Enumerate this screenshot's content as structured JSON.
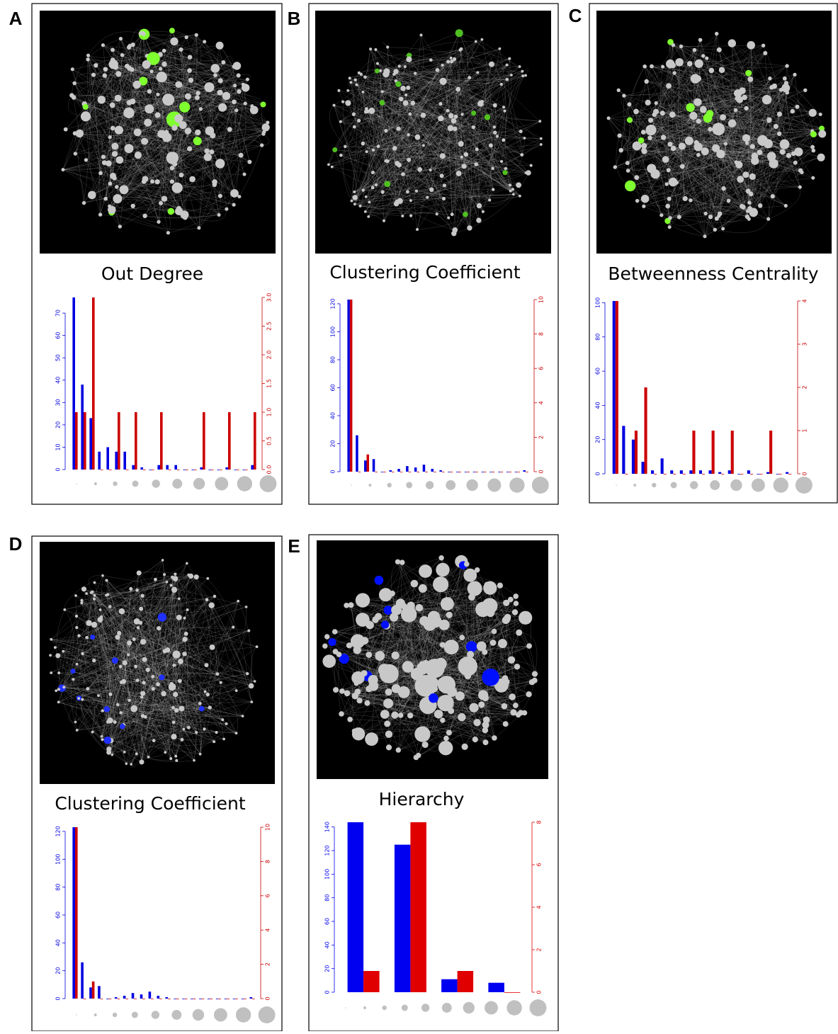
{
  "chart_data": [
    {
      "type": "bar",
      "label": "A",
      "title": "Out Degree",
      "series": [
        {
          "color": "#0000e0",
          "values": [
            77,
            38,
            23,
            8,
            10,
            8,
            8,
            2,
            1,
            0,
            2,
            2,
            2,
            0,
            0,
            1,
            0,
            0,
            1,
            0,
            0,
            2
          ]
        },
        {
          "color": "#cc0000",
          "axis": "y2",
          "values": [
            1,
            1,
            3,
            0,
            0,
            1,
            0,
            1,
            0,
            0,
            1,
            0,
            0,
            0,
            0,
            1,
            0,
            0,
            1,
            0,
            0,
            1
          ]
        }
      ],
      "ylim": [
        0,
        77
      ],
      "yticks": [
        0,
        10,
        20,
        30,
        40,
        50,
        60,
        70
      ],
      "y2lim": [
        0,
        3
      ],
      "y2ticks": [
        {
          "value": 0,
          "label": "0.0"
        },
        {
          "value": 0.5,
          "label": "0.5"
        },
        {
          "value": 1,
          "label": "1.0"
        },
        {
          "value": 1.5,
          "label": "1.5"
        },
        {
          "value": 2,
          "label": "2.0"
        },
        {
          "value": 2.5,
          "label": "2.5"
        },
        {
          "value": 3,
          "label": "3.0"
        }
      ]
    },
    {
      "type": "bar",
      "label": "B",
      "title": "Clustering Coefficient",
      "series": [
        {
          "color": "#0000e0",
          "values": [
            123,
            26,
            8,
            9,
            0,
            1,
            2,
            4,
            3,
            5,
            2,
            1,
            0,
            0,
            0,
            0,
            0,
            0,
            0,
            0,
            0,
            1
          ]
        },
        {
          "color": "#cc0000",
          "axis": "y2",
          "values": [
            10,
            0,
            1,
            0,
            0,
            0,
            0,
            0,
            0,
            0,
            0,
            0,
            0,
            0,
            0,
            0,
            0,
            0,
            0,
            0,
            0,
            0
          ]
        }
      ],
      "ylim": [
        0,
        123
      ],
      "yticks": [
        0,
        20,
        40,
        60,
        80,
        100,
        120
      ],
      "y2lim": [
        0,
        10
      ],
      "y2ticks": [
        0,
        2,
        4,
        6,
        8,
        10
      ]
    },
    {
      "type": "bar",
      "label": "C",
      "title": "Betweenness Centrality",
      "series": [
        {
          "color": "#0000e0",
          "values": [
            101,
            28,
            20,
            7,
            2,
            9,
            2,
            2,
            2,
            2,
            2,
            1,
            2,
            0,
            2,
            0,
            1,
            0,
            1
          ]
        },
        {
          "color": "#cc0000",
          "axis": "y2",
          "values": [
            4,
            0,
            1,
            2,
            0,
            0,
            0,
            0,
            1,
            0,
            1,
            0,
            1,
            0,
            0,
            0,
            1,
            0,
            0
          ]
        }
      ],
      "ylim": [
        0,
        101
      ],
      "yticks": [
        0,
        20,
        40,
        60,
        80,
        100
      ],
      "y2lim": [
        0,
        4
      ],
      "y2ticks": [
        0,
        1,
        2,
        3,
        4
      ]
    },
    {
      "type": "bar",
      "label": "D",
      "title": "Clustering Coefficient",
      "series": [
        {
          "color": "#0000e0",
          "values": [
            123,
            26,
            8,
            9,
            0,
            1,
            2,
            4,
            3,
            5,
            2,
            1,
            0,
            0,
            0,
            0,
            0,
            0,
            0,
            0,
            0,
            1
          ]
        },
        {
          "color": "#cc0000",
          "axis": "y2",
          "values": [
            10,
            0,
            1,
            0,
            0,
            0,
            0,
            0,
            0,
            0,
            0,
            0,
            0,
            0,
            0,
            0,
            0,
            0,
            0,
            0,
            0,
            0
          ]
        }
      ],
      "ylim": [
        0,
        123
      ],
      "yticks": [
        0,
        20,
        40,
        60,
        80,
        100,
        120
      ],
      "y2lim": [
        0,
        10
      ],
      "y2ticks": [
        0,
        2,
        4,
        6,
        8,
        10
      ]
    },
    {
      "type": "bar",
      "label": "E",
      "title": "Hierarchy",
      "series": [
        {
          "color": "#0000f0",
          "values": [
            144,
            125,
            11,
            8
          ]
        },
        {
          "color": "#e00000",
          "axis": "y2",
          "values": [
            1,
            8,
            1,
            0
          ]
        }
      ],
      "ylim": [
        0,
        144
      ],
      "yticks": [
        0,
        20,
        40,
        60,
        80,
        100,
        120,
        140
      ],
      "y2lim": [
        0,
        8
      ],
      "y2ticks": [
        0,
        2,
        4,
        6,
        8
      ]
    }
  ]
}
